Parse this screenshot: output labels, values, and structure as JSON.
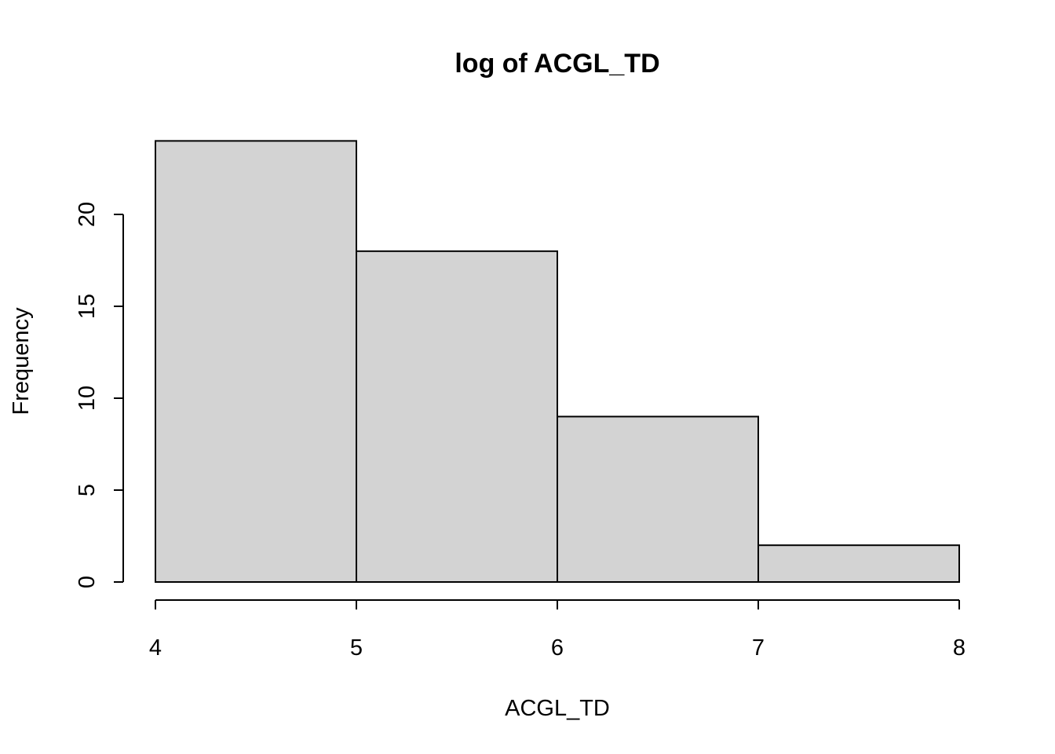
{
  "chart_data": {
    "type": "bar",
    "subtype": "histogram",
    "title": "log of ACGL_TD",
    "xlabel": "ACGL_TD",
    "ylabel": "Frequency",
    "bins": [
      {
        "start": 4,
        "end": 5,
        "count": 24
      },
      {
        "start": 5,
        "end": 6,
        "count": 18
      },
      {
        "start": 6,
        "end": 7,
        "count": 9
      },
      {
        "start": 7,
        "end": 8,
        "count": 2
      }
    ],
    "xlim": [
      4,
      8
    ],
    "ylim": [
      0,
      24
    ],
    "x_ticks": [
      "4",
      "5",
      "6",
      "7",
      "8"
    ],
    "y_ticks": [
      "0",
      "5",
      "10",
      "15",
      "20"
    ],
    "grid": false,
    "legend": "none",
    "colors": {
      "bar_fill": "#d3d3d3",
      "bar_stroke": "#000000",
      "axis": "#000000",
      "background": "#ffffff"
    }
  }
}
